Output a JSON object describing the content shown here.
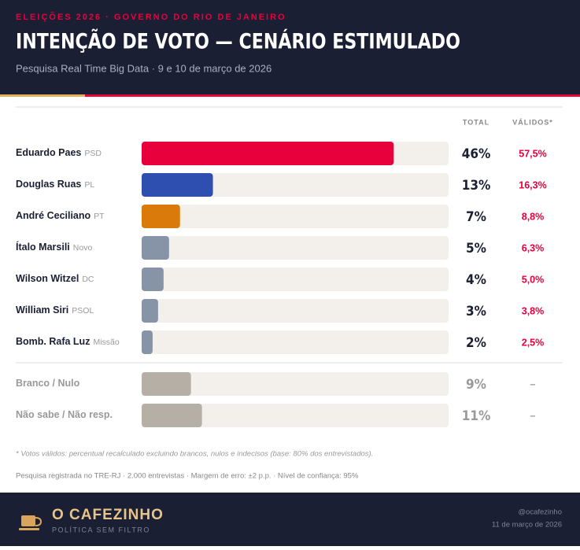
{
  "chart_data": {
    "type": "bar",
    "orientation": "horizontal",
    "kicker": "ELEIÇÕES 2026 · GOVERNO DO RIO DE JANEIRO",
    "title": "INTENÇÃO DE VOTO — CENÁRIO ESTIMULADO",
    "subtitle": "Pesquisa Real Time Big Data · 9 e 10 de março de 2026",
    "column_headers": [
      "TOTAL",
      "VÁLIDOS*"
    ],
    "categories": [
      "Eduardo Paes",
      "Douglas Ruas",
      "André Ceciliano",
      "Ítalo Marsili",
      "Wilson Witzel",
      "William Siri",
      "Bomb. Rafa Luz"
    ],
    "parties": [
      "PSD",
      "PL",
      "PT",
      "Novo",
      "DC",
      "PSOL",
      "Missão"
    ],
    "values": [
      46,
      13,
      7,
      5,
      4,
      3,
      2
    ],
    "value_labels": [
      "46%",
      "13%",
      "7%",
      "5%",
      "4%",
      "3%",
      "2%"
    ],
    "colors": [
      "#e8003d",
      "#2f4fb0",
      "#d97a0a",
      "#8794a8",
      "#8794a8",
      "#8794a8",
      "#8794a8"
    ],
    "valid_values": [
      57.5,
      16.3,
      8.8,
      6.3,
      5.0,
      3.8,
      2.5
    ],
    "valid_labels": [
      "57,5%",
      "16,3%",
      "8,8%",
      "6,3%",
      "5,0%",
      "3,8%",
      "2,5%"
    ],
    "other_categories": [
      "Branco / Nulo",
      "Não sabe / Não resp."
    ],
    "other_values": [
      9,
      11
    ],
    "other_value_labels": [
      "9%",
      "11%"
    ],
    "other_valid_labels": [
      "–",
      "–"
    ],
    "other_color": "#b5afa5",
    "xlim": [
      0,
      56
    ],
    "footnote": "* Votos válidos: percentual recalculado excluindo brancos, nulos e indecisos (base: 80% dos entrevistados).",
    "source": "Pesquisa registrada no TRE-RJ · 2.000 entrevistas · Margem de erro: ±2 p.p. · Nível de confiança: 95%"
  },
  "footer": {
    "brand": "O CAFEZINHO",
    "tagline": "POLÍTICA SEM FILTRO",
    "handle": "@ocafezinho",
    "date": "11 de março de 2026"
  }
}
